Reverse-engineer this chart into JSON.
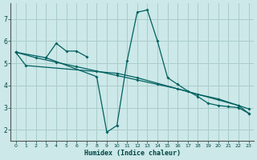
{
  "background_color": "#cce8e8",
  "grid_color": "#aacccc",
  "line_color": "#006060",
  "xlabel": "Humidex (Indice chaleur)",
  "xlim": [
    -0.5,
    23.5
  ],
  "ylim": [
    1.5,
    7.7
  ],
  "xticks": [
    0,
    1,
    2,
    3,
    4,
    5,
    6,
    7,
    8,
    9,
    10,
    11,
    12,
    13,
    14,
    15,
    16,
    17,
    18,
    19,
    20,
    21,
    22,
    23
  ],
  "yticks": [
    2,
    3,
    4,
    5,
    6,
    7
  ],
  "series": [
    {
      "x": [
        0,
        1,
        10,
        12,
        22,
        23
      ],
      "y": [
        5.5,
        4.9,
        4.55,
        4.35,
        3.1,
        2.75
      ]
    },
    {
      "x": [
        0,
        3,
        4,
        5,
        6,
        7
      ],
      "y": [
        5.5,
        5.25,
        5.9,
        5.55,
        5.55,
        5.3
      ]
    },
    {
      "x": [
        3,
        8,
        9,
        10,
        11,
        12,
        13,
        14,
        15,
        16,
        17,
        18,
        19,
        20,
        21,
        22,
        23
      ],
      "y": [
        5.25,
        4.4,
        1.9,
        2.2,
        5.1,
        7.3,
        7.4,
        6.0,
        4.35,
        4.05,
        3.75,
        3.5,
        3.2,
        3.1,
        3.05,
        3.0,
        2.75
      ]
    },
    {
      "x": [
        0,
        2,
        4,
        6,
        8,
        10,
        12,
        14,
        16,
        18,
        20,
        22,
        23
      ],
      "y": [
        5.5,
        5.25,
        5.05,
        4.85,
        4.65,
        4.45,
        4.25,
        4.05,
        3.85,
        3.6,
        3.4,
        3.1,
        2.95
      ]
    }
  ]
}
